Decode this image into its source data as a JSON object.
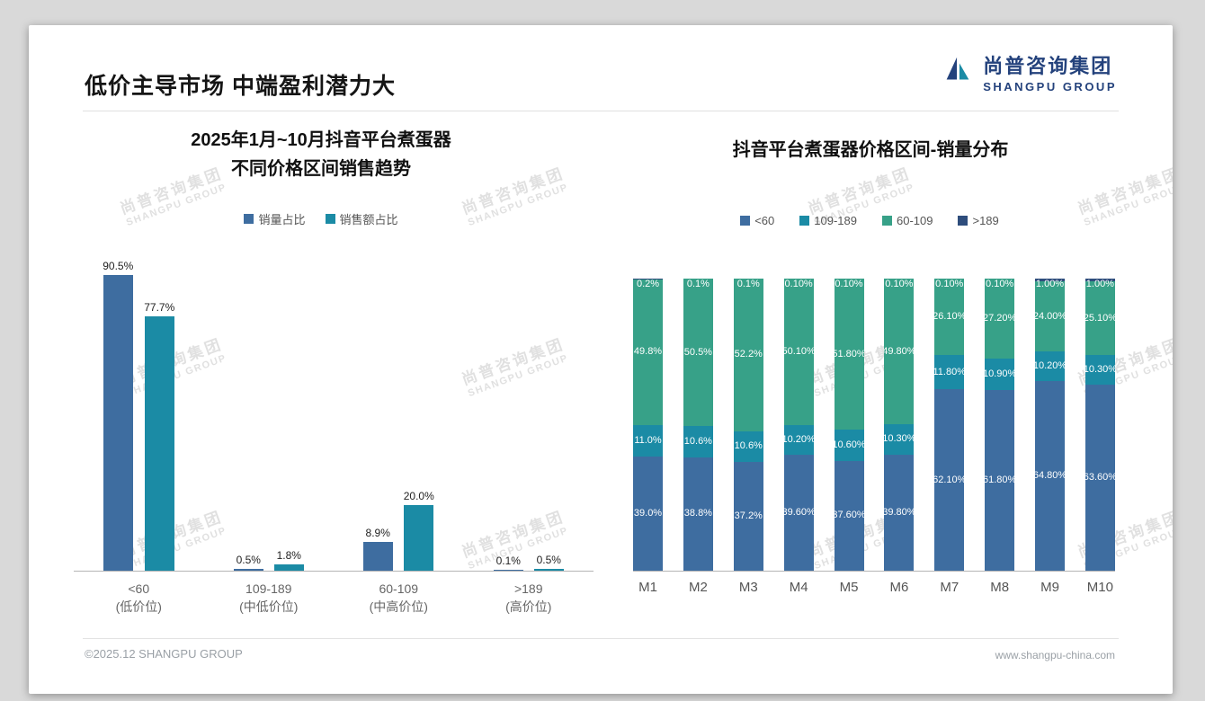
{
  "header": {
    "title": "低价主导市场 中端盈利潜力大",
    "logo": {
      "cn": "尚普咨询集团",
      "en": "SHANGPU GROUP"
    }
  },
  "watermark": {
    "cn": "尚普咨询集团",
    "en": "SHANGPU GROUP"
  },
  "footer": {
    "copyright": "©2025.12 SHANGPU GROUP",
    "url": "www.shangpu-china.com"
  },
  "colors": {
    "blue": "#3e6da0",
    "teal": "#1b8ba5",
    "green": "#37a188",
    "navy": "#2e4d7c",
    "logo_navy": "#24427c"
  },
  "chart_data": [
    {
      "type": "bar",
      "stacked": false,
      "title_lines": [
        "2025年1月~10月抖音平台煮蛋器",
        "不同价格区间销售趋势"
      ],
      "categories": [
        "<60",
        "109-189",
        "60-109",
        ">189"
      ],
      "category_sublabels": [
        "(低价位)",
        "(中低价位)",
        "(中高价位)",
        "(高价位)"
      ],
      "ylim": [
        0,
        100
      ],
      "grid": false,
      "legend_position": "top",
      "series": [
        {
          "name": "销量占比",
          "color": "#3e6da0",
          "values": [
            90.5,
            0.5,
            8.9,
            0.1
          ],
          "labels": [
            "90.5%",
            "0.5%",
            "8.9%",
            "0.1%"
          ]
        },
        {
          "name": "销售额占比",
          "color": "#1b8ba5",
          "values": [
            77.7,
            1.8,
            20.0,
            0.5
          ],
          "labels": [
            "77.7%",
            "1.8%",
            "20.0%",
            "0.5%"
          ]
        }
      ]
    },
    {
      "type": "bar",
      "stacked": true,
      "title": "抖音平台煮蛋器价格区间-销量分布",
      "categories": [
        "M1",
        "M2",
        "M3",
        "M4",
        "M5",
        "M6",
        "M7",
        "M8",
        "M9",
        "M10"
      ],
      "ylim": [
        0,
        100
      ],
      "grid": false,
      "legend_position": "top",
      "series": [
        {
          "name": "<60",
          "color": "#3e6da0",
          "values": [
            39.0,
            38.8,
            37.2,
            39.6,
            37.6,
            39.8,
            62.1,
            61.8,
            64.8,
            63.6
          ],
          "labels": [
            "39.0%",
            "38.8%",
            "37.2%",
            "39.60%",
            "37.60%",
            "39.80%",
            "62.10%",
            "61.80%",
            "64.80%",
            "63.60%"
          ]
        },
        {
          "name": "109-189",
          "color": "#1b8ba5",
          "values": [
            11.0,
            10.6,
            10.6,
            10.2,
            10.6,
            10.3,
            11.8,
            10.9,
            10.2,
            10.3
          ],
          "labels": [
            "11.0%",
            "10.6%",
            "10.6%",
            "10.20%",
            "10.60%",
            "10.30%",
            "11.80%",
            "10.90%",
            "10.20%",
            "10.30%"
          ]
        },
        {
          "name": "60-109",
          "color": "#37a188",
          "values": [
            49.8,
            50.5,
            52.2,
            50.1,
            51.8,
            49.8,
            26.1,
            27.2,
            24.0,
            25.1
          ],
          "labels": [
            "49.8%",
            "50.5%",
            "52.2%",
            "50.10%",
            "51.80%",
            "49.80%",
            "26.10%",
            "27.20%",
            "24.00%",
            "25.10%"
          ]
        },
        {
          "name": ">189",
          "color": "#2e4d7c",
          "values": [
            0.2,
            0.1,
            0.1,
            0.1,
            0.1,
            0.1,
            0.1,
            0.1,
            1.0,
            1.0
          ],
          "labels": [
            "0.2%",
            "0.1%",
            "0.1%",
            "0.10%",
            "0.10%",
            "0.10%",
            "0.10%",
            "0.10%",
            "1.00%",
            "1.00%"
          ]
        }
      ]
    }
  ]
}
